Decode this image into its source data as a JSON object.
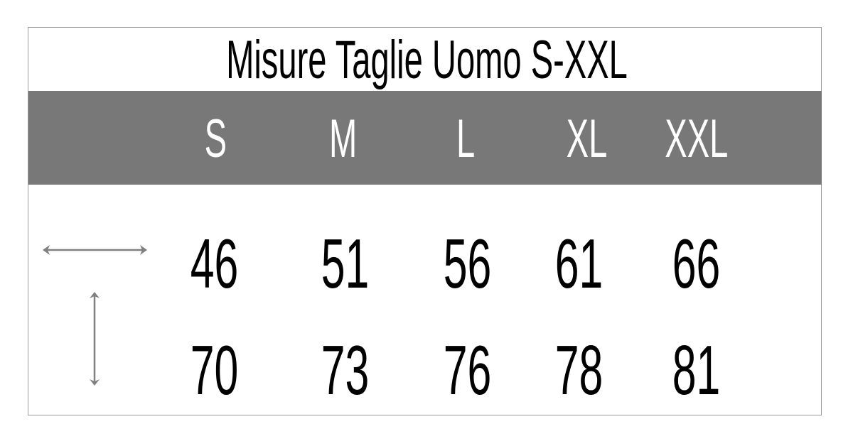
{
  "title": "Misure Taglie Uomo S-XXL",
  "colors": {
    "header_band": "#787878",
    "header_text": "#ffffff",
    "arrow": "#808080",
    "border": "#9a9a90"
  },
  "sizes": [
    "S",
    "M",
    "L",
    "XL",
    "XXL"
  ],
  "rows": [
    {
      "icon": "horizontal-double-arrow-icon",
      "values": [
        "46",
        "51",
        "56",
        "61",
        "66"
      ]
    },
    {
      "icon": "vertical-double-arrow-icon",
      "values": [
        "70",
        "73",
        "76",
        "78",
        "81"
      ]
    }
  ]
}
